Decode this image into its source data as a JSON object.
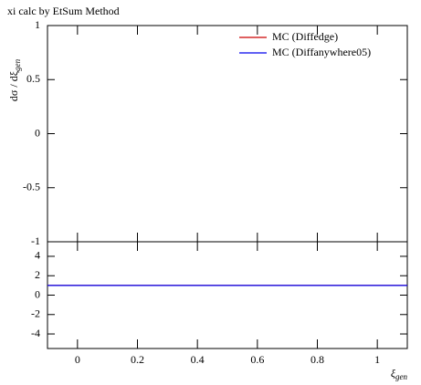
{
  "chart_data": [
    {
      "type": "line",
      "title": "xi calc by EtSum Method",
      "ylabel": "dσ / dξ",
      "ylabel_sub": "gen",
      "x": [],
      "xlim": [
        -0.1,
        1.1
      ],
      "ylim": [
        -1,
        1
      ],
      "yticks": [
        1,
        0.5,
        0,
        -0.5,
        -1
      ],
      "series": [
        {
          "name": "MC (Diffedge)",
          "color": "#cc0000",
          "values": []
        },
        {
          "name": "MC (Diffanywhere05)",
          "color": "#0000ee",
          "values": []
        }
      ],
      "legend": "upper right"
    },
    {
      "type": "line",
      "xlabel": "ξ",
      "xlabel_sub": "gen",
      "x": [
        -0.1,
        1.1
      ],
      "xlim": [
        -0.1,
        1.1
      ],
      "xticks": [
        0,
        0.2,
        0.4,
        0.6,
        0.8,
        1
      ],
      "ylim": [
        -5.5,
        5.5
      ],
      "yticks": [
        4,
        2,
        0,
        -2,
        -4
      ],
      "series": [
        {
          "color": "#cc0000",
          "values": [
            1,
            1
          ]
        },
        {
          "color": "#0000ee",
          "values": [
            1,
            1
          ]
        }
      ]
    }
  ]
}
